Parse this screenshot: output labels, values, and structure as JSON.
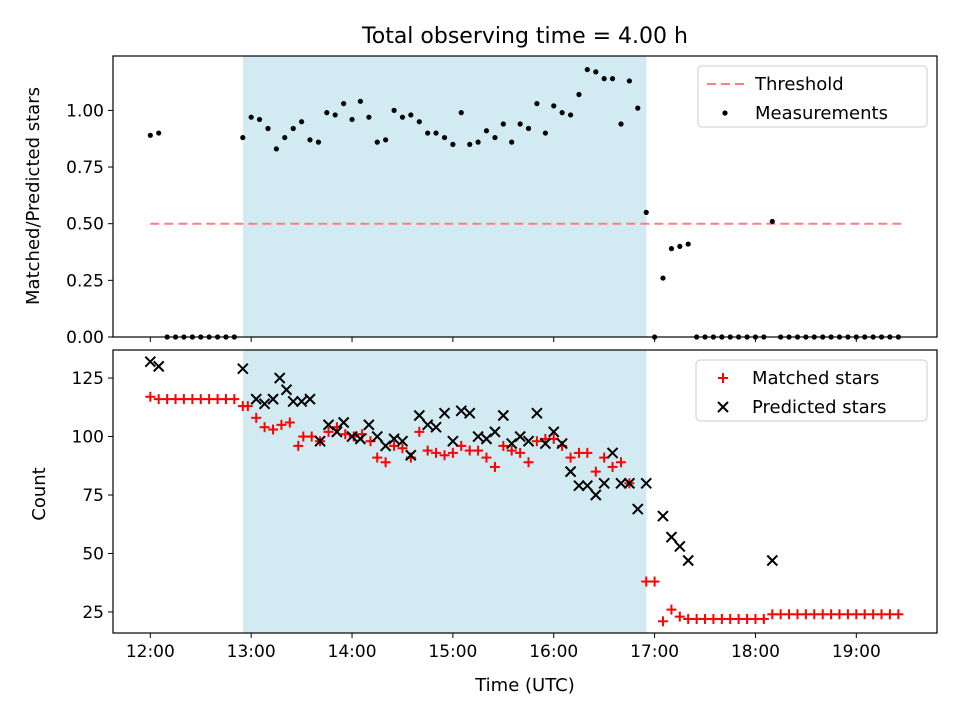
{
  "chart_data": [
    {
      "type": "scatter",
      "title": "Total observing time = 4.00 h",
      "ylabel": "Matched/Predicted stars",
      "xlabel": "",
      "xlim_hours": [
        11.63,
        19.8
      ],
      "ylim": [
        0.0,
        1.24
      ],
      "yticks": [
        "0.00",
        "0.25",
        "0.50",
        "0.75",
        "1.00"
      ],
      "yticks_values": [
        0.0,
        0.25,
        0.5,
        0.75,
        1.0
      ],
      "shaded_span_hours": [
        12.92,
        16.92
      ],
      "shade_color": "#add8e6",
      "legend_position": "upper right",
      "series": [
        {
          "name": "Threshold",
          "kind": "dashed-line",
          "color": "#ff7f7f",
          "x_hours": [
            12.0,
            19.45
          ],
          "values": [
            0.5,
            0.5
          ]
        },
        {
          "name": "Measurements",
          "kind": "dot",
          "color": "#000000",
          "x_hours": [
            12.0,
            12.083,
            12.167,
            12.25,
            12.333,
            12.417,
            12.5,
            12.583,
            12.667,
            12.75,
            12.833,
            12.917,
            13.0,
            13.083,
            13.167,
            13.25,
            13.333,
            13.417,
            13.5,
            13.583,
            13.667,
            13.75,
            13.833,
            13.917,
            14.0,
            14.083,
            14.167,
            14.25,
            14.333,
            14.417,
            14.5,
            14.583,
            14.667,
            14.75,
            14.833,
            14.917,
            15.0,
            15.083,
            15.167,
            15.25,
            15.333,
            15.417,
            15.5,
            15.583,
            15.667,
            15.75,
            15.833,
            15.917,
            16.0,
            16.083,
            16.167,
            16.25,
            16.333,
            16.417,
            16.5,
            16.583,
            16.667,
            16.75,
            16.833,
            16.917,
            17.0,
            17.083,
            17.167,
            17.25,
            17.333,
            17.417,
            17.5,
            17.583,
            17.667,
            17.75,
            17.833,
            17.917,
            18.0,
            18.083,
            18.167,
            18.25,
            18.333,
            18.417,
            18.5,
            18.583,
            18.667,
            18.75,
            18.833,
            18.917,
            19.0,
            19.083,
            19.167,
            19.25,
            19.333,
            19.417
          ],
          "values": [
            0.89,
            0.9,
            0.0,
            0.0,
            0.0,
            0.0,
            0.0,
            0.0,
            0.0,
            0.0,
            0.0,
            0.88,
            0.97,
            0.96,
            0.92,
            0.83,
            0.88,
            0.92,
            0.95,
            0.87,
            0.86,
            0.99,
            0.98,
            1.03,
            0.96,
            1.04,
            0.97,
            0.86,
            0.87,
            1.0,
            0.97,
            0.98,
            0.95,
            0.9,
            0.9,
            0.88,
            0.85,
            0.99,
            0.85,
            0.86,
            0.91,
            0.88,
            0.94,
            0.86,
            0.94,
            0.92,
            1.03,
            0.9,
            1.02,
            0.99,
            0.98,
            1.07,
            1.18,
            1.17,
            1.14,
            1.14,
            0.94,
            1.13,
            1.01,
            0.55,
            0.0,
            0.26,
            0.39,
            0.4,
            0.41,
            0.0,
            0.0,
            0.0,
            0.0,
            0.0,
            0.0,
            0.0,
            0.0,
            0.0,
            0.51,
            0.0,
            0.0,
            0.0,
            0.0,
            0.0,
            0.0,
            0.0,
            0.0,
            0.0,
            0.0,
            0.0,
            0.0,
            0.0,
            0.0,
            0.0
          ]
        }
      ]
    },
    {
      "type": "scatter",
      "title": "",
      "ylabel": "Count",
      "xlabel": "Time (UTC)",
      "xlim_hours": [
        11.63,
        19.8
      ],
      "ylim": [
        16,
        137
      ],
      "yticks": [
        "25",
        "50",
        "75",
        "100",
        "125"
      ],
      "yticks_values": [
        25,
        50,
        75,
        100,
        125
      ],
      "xticks": [
        "12:00",
        "13:00",
        "14:00",
        "15:00",
        "16:00",
        "17:00",
        "18:00",
        "19:00"
      ],
      "xticks_hours": [
        12,
        13,
        14,
        15,
        16,
        17,
        18,
        19
      ],
      "shaded_span_hours": [
        12.92,
        16.92
      ],
      "shade_color": "#add8e6",
      "legend_position": "upper right",
      "series": [
        {
          "name": "Matched stars",
          "kind": "plus",
          "color": "#ff0000",
          "x_hours": [
            12.0,
            12.083,
            12.167,
            12.25,
            12.333,
            12.417,
            12.5,
            12.583,
            12.667,
            12.75,
            12.833,
            12.917,
            12.967,
            13.05,
            13.133,
            13.217,
            13.3,
            13.383,
            13.467,
            13.517,
            13.6,
            13.683,
            13.767,
            13.85,
            13.933,
            14.017,
            14.1,
            14.183,
            14.25,
            14.333,
            14.417,
            14.5,
            14.583,
            14.667,
            14.75,
            14.833,
            14.917,
            15.0,
            15.083,
            15.167,
            15.25,
            15.333,
            15.417,
            15.5,
            15.583,
            15.667,
            15.75,
            15.833,
            15.917,
            16.0,
            16.083,
            16.167,
            16.25,
            16.333,
            16.417,
            16.5,
            16.583,
            16.667,
            16.75,
            16.917,
            17.0,
            17.083,
            17.167,
            17.25,
            17.333,
            17.417,
            17.5,
            17.583,
            17.667,
            17.75,
            17.833,
            17.917,
            18.0,
            18.083,
            18.167,
            18.25,
            18.333,
            18.417,
            18.5,
            18.583,
            18.667,
            18.75,
            18.833,
            18.917,
            19.0,
            19.083,
            19.167,
            19.25,
            19.333,
            19.417
          ],
          "values": [
            117,
            116,
            116,
            116,
            116,
            116,
            116,
            116,
            116,
            116,
            116,
            113,
            113,
            108,
            104,
            103,
            105,
            106,
            96,
            100,
            100,
            98,
            102,
            104,
            101,
            100,
            101,
            98,
            91,
            89,
            96,
            95,
            91,
            102,
            94,
            93,
            92,
            93,
            96,
            94,
            94,
            91,
            87,
            96,
            94,
            93,
            89,
            98,
            99,
            99,
            96,
            91,
            93,
            93,
            85,
            91,
            87,
            89,
            80,
            38,
            38,
            21,
            26,
            23,
            22,
            22,
            22,
            22,
            22,
            22,
            22,
            22,
            22,
            22,
            24,
            24,
            24,
            24,
            24,
            24,
            24,
            24,
            24,
            24,
            24,
            24,
            24,
            24,
            24,
            24
          ]
        },
        {
          "name": "Predicted stars",
          "kind": "x",
          "color": "#000000",
          "x_hours": [
            12.0,
            12.083,
            12.917,
            13.05,
            13.133,
            13.217,
            13.283,
            13.35,
            13.417,
            13.5,
            13.583,
            13.683,
            13.767,
            13.85,
            13.917,
            14.0,
            14.083,
            14.167,
            14.25,
            14.333,
            14.417,
            14.5,
            14.583,
            14.667,
            14.75,
            14.833,
            14.917,
            15.0,
            15.083,
            15.167,
            15.25,
            15.333,
            15.417,
            15.5,
            15.583,
            15.667,
            15.75,
            15.833,
            15.917,
            16.0,
            16.083,
            16.167,
            16.25,
            16.333,
            16.417,
            16.5,
            16.583,
            16.667,
            16.75,
            16.833,
            16.917,
            17.083,
            17.167,
            17.25,
            17.333,
            18.167
          ],
          "values": [
            132,
            130,
            129,
            116,
            114,
            116,
            125,
            120,
            115,
            115,
            116,
            98,
            105,
            102,
            106,
            100,
            99,
            105,
            100,
            96,
            99,
            98,
            92,
            109,
            105,
            104,
            110,
            98,
            111,
            110,
            100,
            99,
            102,
            109,
            97,
            100,
            98,
            110,
            97,
            102,
            97,
            85,
            79,
            79,
            75,
            80,
            93,
            80,
            80,
            69,
            80,
            66,
            57,
            53,
            47,
            47
          ]
        }
      ]
    }
  ]
}
